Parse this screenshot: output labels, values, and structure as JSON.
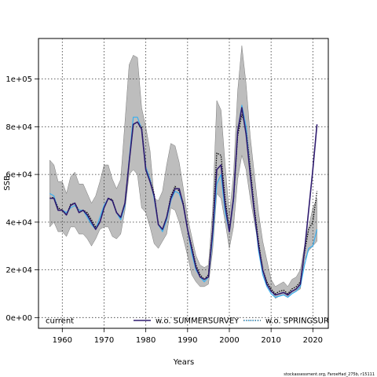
{
  "chart_data": {
    "type": "line",
    "xlabel": "Years",
    "ylabel": "SSB",
    "xlim": [
      1954.3,
      2023.7
    ],
    "ylim": [
      -4500,
      117000
    ],
    "x_ticks": [
      1960,
      1970,
      1980,
      1990,
      2000,
      2010,
      2020
    ],
    "y_ticks": [
      0,
      20000,
      40000,
      60000,
      80000,
      100000
    ],
    "y_tick_labels": [
      "0e+00",
      "2e+04",
      "4e+04",
      "6e+04",
      "8e+04",
      "1e+05"
    ],
    "grid": true,
    "legend_position": "bottom",
    "years": [
      1957,
      1958,
      1959,
      1960,
      1961,
      1962,
      1963,
      1964,
      1965,
      1966,
      1967,
      1968,
      1969,
      1970,
      1971,
      1972,
      1973,
      1974,
      1975,
      1976,
      1977,
      1978,
      1979,
      1980,
      1981,
      1982,
      1983,
      1984,
      1985,
      1986,
      1987,
      1988,
      1989,
      1990,
      1991,
      1992,
      1993,
      1994,
      1995,
      1996,
      1997,
      1998,
      1999,
      2000,
      2001,
      2002,
      2003,
      2004,
      2005,
      2006,
      2007,
      2008,
      2009,
      2010,
      2011,
      2012,
      2013,
      2014,
      2015,
      2016,
      2017,
      2018,
      2019,
      2020,
      2021
    ],
    "band": {
      "lower": [
        38000,
        40000,
        36000,
        36000,
        34000,
        38000,
        38000,
        35000,
        35000,
        33000,
        30000,
        33000,
        37000,
        38000,
        38000,
        34000,
        33000,
        35000,
        45000,
        60000,
        62000,
        60000,
        46000,
        44000,
        38000,
        31000,
        29000,
        32000,
        35000,
        46000,
        45000,
        40000,
        33000,
        26000,
        18000,
        15000,
        13000,
        13000,
        14000,
        28000,
        52000,
        50000,
        40000,
        29000,
        38000,
        58000,
        68000,
        62000,
        50000,
        40000,
        30000,
        22000,
        15000,
        12000,
        8000,
        9000,
        9500,
        8500,
        10000,
        11000,
        12000,
        24000,
        28000,
        30000,
        32000
      ],
      "upper": [
        66000,
        64000,
        57000,
        57000,
        52000,
        59000,
        61000,
        56000,
        56000,
        52000,
        48000,
        51000,
        57000,
        64000,
        64000,
        58000,
        54000,
        58000,
        82000,
        106000,
        110000,
        109000,
        88000,
        80000,
        70000,
        50000,
        49000,
        53000,
        64000,
        73000,
        72000,
        65000,
        54000,
        42000,
        34000,
        26000,
        22000,
        21000,
        22000,
        45000,
        91000,
        87000,
        64000,
        43000,
        60000,
        95000,
        114000,
        98000,
        76000,
        60000,
        44000,
        32000,
        24000,
        16000,
        13000,
        14000,
        15000,
        13000,
        16000,
        17000,
        20000,
        30000,
        38000,
        46000,
        50000
      ]
    },
    "series": [
      {
        "name": "current",
        "color": "#000000",
        "values": [
          50000,
          50500,
          46000,
          45000,
          43000,
          47500,
          48000,
          45000,
          45000,
          44000,
          41000,
          38000,
          40000,
          46000,
          50000,
          49500,
          44000,
          42000,
          48000,
          65000,
          81000,
          82000,
          80000,
          63000,
          58000,
          52000,
          39000,
          37000,
          42000,
          51000,
          55000,
          53000,
          48000,
          37000,
          30000,
          22000,
          18000,
          16000,
          18000,
          37000,
          69000,
          68000,
          50000,
          37000,
          49000,
          76000,
          85000,
          80000,
          63000,
          46000,
          32000,
          20000,
          15000,
          12000,
          10000,
          11000,
          11500,
          10000,
          12000,
          13000,
          15000,
          27000,
          37000,
          40000,
          53000
        ]
      },
      {
        "name": "w.o. SUMMERSURVEY",
        "color": "#2e1a6e",
        "values": [
          50000,
          50000,
          45000,
          45000,
          43000,
          47000,
          48000,
          44000,
          45000,
          43000,
          40000,
          37000,
          40000,
          46000,
          50000,
          49000,
          44000,
          42000,
          48000,
          65000,
          81000,
          82000,
          79000,
          62000,
          57000,
          51000,
          39000,
          37000,
          42000,
          50000,
          54000,
          54000,
          47000,
          37000,
          29000,
          21000,
          17000,
          16000,
          17000,
          36000,
          62000,
          64000,
          47000,
          36000,
          50000,
          78000,
          88000,
          77000,
          60000,
          44000,
          30000,
          20000,
          14000,
          11000,
          9500,
          10000,
          10500,
          9500,
          11000,
          12000,
          14000,
          28000,
          45000,
          62000,
          81000
        ]
      },
      {
        "name": "w.o. SPRINGSURVEY",
        "color": "#3ab0f0",
        "values": [
          52000,
          51000,
          45000,
          45000,
          44000,
          46000,
          47000,
          45000,
          45000,
          42000,
          39000,
          37000,
          42000,
          47000,
          50000,
          49000,
          44000,
          41000,
          47000,
          66000,
          84000,
          84000,
          79000,
          63000,
          58000,
          50000,
          39000,
          36000,
          41000,
          49000,
          53000,
          52000,
          47000,
          37000,
          27000,
          20000,
          17000,
          15000,
          17000,
          33000,
          56000,
          60000,
          44000,
          36000,
          49000,
          78000,
          89000,
          80000,
          60000,
          44000,
          28000,
          18000,
          13000,
          10000,
          8500,
          9000,
          9500,
          8500,
          10000,
          11000,
          13000,
          22000,
          29000,
          30000,
          37000
        ]
      }
    ],
    "band_color": "#bdbdbd",
    "legend_labels": [
      "current",
      "w.o. SUMMERSURVEY",
      "w.o. SPRINGSURVEY"
    ]
  },
  "credit": "stockassessment.org, FaroeHad_275b, r15111"
}
